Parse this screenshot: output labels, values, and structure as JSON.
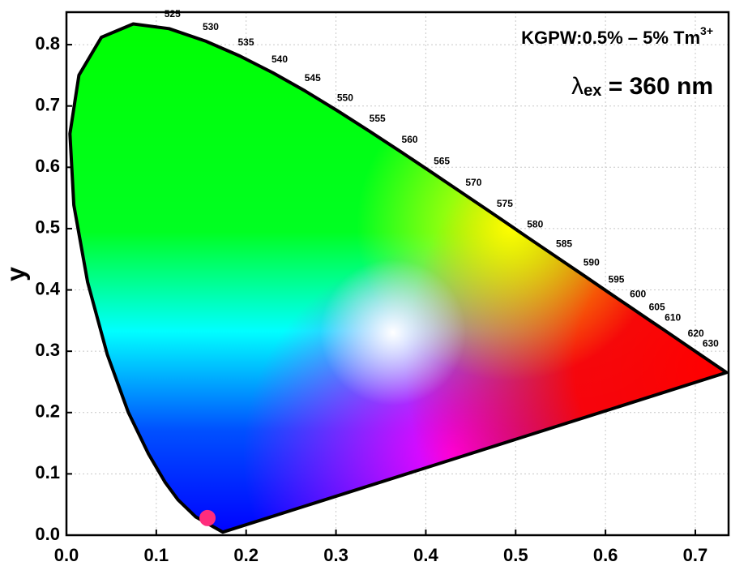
{
  "chart_data": {
    "type": "scatter",
    "title": {
      "text": "KGPW:0.5% – 5% Tm",
      "sup": "3+"
    },
    "excitation": {
      "symbol": "λ",
      "sub": "ex",
      "text": " = 360 nm"
    },
    "y_label": "y",
    "xlim": [
      0,
      0.737
    ],
    "ylim": [
      0,
      0.853
    ],
    "xticks": [
      {
        "value": 0,
        "label": "0.0"
      },
      0.1,
      0.2,
      0.3,
      0.4,
      0.5,
      0.6,
      0.7
    ],
    "yticks": [
      {
        "value": 0,
        "label": "0.0"
      },
      0.1,
      0.2,
      0.3,
      0.4,
      0.5,
      0.6,
      0.7,
      0.8
    ],
    "grid": true,
    "locus": {
      "x": [
        0.1741,
        0.144,
        0.1241,
        0.1096,
        0.0913,
        0.0687,
        0.0454,
        0.0235,
        0.0082,
        0.0039,
        0.0139,
        0.0389,
        0.0743,
        0.1142,
        0.1547,
        0.1929,
        0.2296,
        0.2658,
        0.3016,
        0.3373,
        0.3731,
        0.4087,
        0.4441,
        0.4788,
        0.5125,
        0.5448,
        0.5752,
        0.6029,
        0.627,
        0.6482,
        0.6658,
        0.6915,
        0.7079,
        0.7347
      ],
      "y": [
        0.005,
        0.0297,
        0.0578,
        0.0868,
        0.1327,
        0.2007,
        0.295,
        0.4127,
        0.5384,
        0.6548,
        0.7502,
        0.812,
        0.8338,
        0.8262,
        0.8059,
        0.7816,
        0.7543,
        0.7243,
        0.6923,
        0.6589,
        0.6245,
        0.5896,
        0.5547,
        0.5202,
        0.4866,
        0.4544,
        0.4242,
        0.3965,
        0.3725,
        0.3514,
        0.334,
        0.3083,
        0.292,
        0.2653
      ],
      "wavelengths": [
        null,
        null,
        null,
        null,
        null,
        null,
        null,
        null,
        null,
        null,
        null,
        null,
        null,
        525,
        530,
        535,
        540,
        545,
        550,
        555,
        560,
        565,
        570,
        575,
        580,
        585,
        590,
        595,
        600,
        605,
        610,
        620,
        630,
        null
      ],
      "color": "#000000"
    },
    "points": {
      "x": [
        0.157
      ],
      "y": [
        0.028
      ],
      "color": "#ff2d7d"
    }
  }
}
